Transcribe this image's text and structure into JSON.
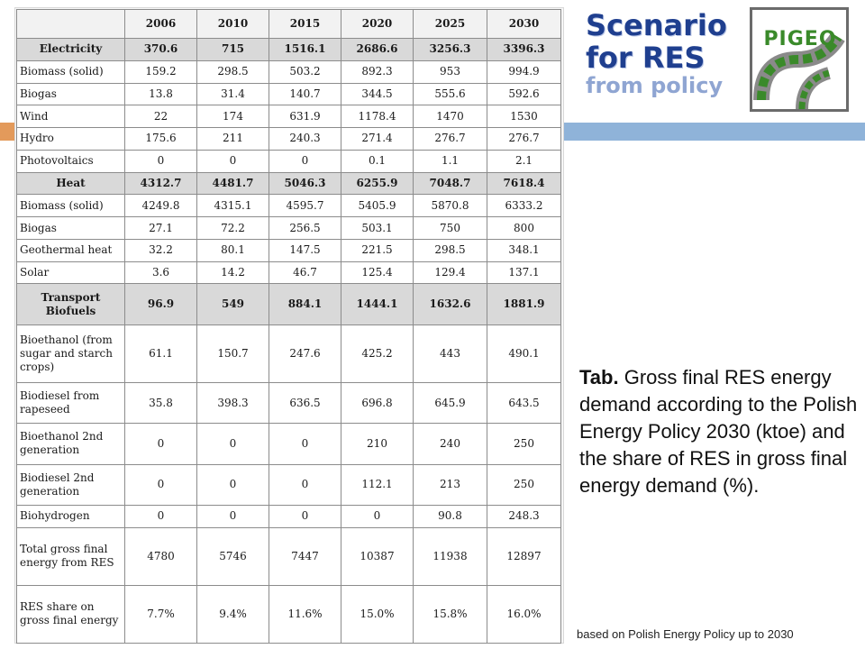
{
  "slide": {
    "title_line1": "Scenario",
    "title_line2": "for RES",
    "subtitle": "from policy",
    "logo_text": "PIGEO",
    "caption_bold": "Tab.",
    "caption_text": " Gross final RES energy demand according to the Polish Energy Policy 2030 (ktoe) and the share of RES in gross final energy demand (%).",
    "footnote": "based on Polish Energy Policy up to 2030",
    "colors": {
      "title": "#1f3f8f",
      "subtitle": "#8fa5d2",
      "accent_left": "#e39a5b",
      "accent_right": "#8fb3d9",
      "logo_green": "#3a8a2a"
    }
  },
  "table": {
    "years": [
      "2006",
      "2010",
      "2015",
      "2020",
      "2025",
      "2030"
    ],
    "rows": [
      {
        "label": "Electricity",
        "section": true,
        "values": [
          "370.6",
          "715",
          "1516.1",
          "2686.6",
          "3256.3",
          "3396.3"
        ]
      },
      {
        "label": "Biomass (solid)",
        "values": [
          "159.2",
          "298.5",
          "503.2",
          "892.3",
          "953",
          "994.9"
        ]
      },
      {
        "label": "Biogas",
        "values": [
          "13.8",
          "31.4",
          "140.7",
          "344.5",
          "555.6",
          "592.6"
        ]
      },
      {
        "label": "Wind",
        "values": [
          "22",
          "174",
          "631.9",
          "1178.4",
          "1470",
          "1530"
        ]
      },
      {
        "label": "Hydro",
        "values": [
          "175.6",
          "211",
          "240.3",
          "271.4",
          "276.7",
          "276.7"
        ]
      },
      {
        "label": "Photovoltaics",
        "values": [
          "0",
          "0",
          "0",
          "0.1",
          "1.1",
          "2.1"
        ]
      },
      {
        "label": "Heat",
        "section": true,
        "values": [
          "4312.7",
          "4481.7",
          "5046.3",
          "6255.9",
          "7048.7",
          "7618.4"
        ]
      },
      {
        "label": "Biomass (solid)",
        "values": [
          "4249.8",
          "4315.1",
          "4595.7",
          "5405.9",
          "5870.8",
          "6333.2"
        ]
      },
      {
        "label": "Biogas",
        "values": [
          "27.1",
          "72.2",
          "256.5",
          "503.1",
          "750",
          "800"
        ]
      },
      {
        "label": "Geothermal heat",
        "values": [
          "32.2",
          "80.1",
          "147.5",
          "221.5",
          "298.5",
          "348.1"
        ]
      },
      {
        "label": "Solar",
        "values": [
          "3.6",
          "14.2",
          "46.7",
          "125.4",
          "129.4",
          "137.1"
        ]
      },
      {
        "label": "Transport Biofuels",
        "section": true,
        "values": [
          "96.9",
          "549",
          "884.1",
          "1444.1",
          "1632.6",
          "1881.9"
        ]
      },
      {
        "label": "Bioethanol (from sugar and starch crops)",
        "values": [
          "61.1",
          "150.7",
          "247.6",
          "425.2",
          "443",
          "490.1"
        ]
      },
      {
        "label": "Biodiesel from rapeseed",
        "values": [
          "35.8",
          "398.3",
          "636.5",
          "696.8",
          "645.9",
          "643.5"
        ]
      },
      {
        "label": "Bioethanol 2nd generation",
        "values": [
          "0",
          "0",
          "0",
          "210",
          "240",
          "250"
        ]
      },
      {
        "label": "Biodiesel 2nd generation",
        "values": [
          "0",
          "0",
          "0",
          "112.1",
          "213",
          "250"
        ]
      },
      {
        "label": "Biohydrogen",
        "values": [
          "0",
          "0",
          "0",
          "0",
          "90.8",
          "248.3"
        ]
      },
      {
        "label": "Total gross final energy from RES",
        "values": [
          "4780",
          "5746",
          "7447",
          "10387",
          "11938",
          "12897"
        ]
      },
      {
        "label": "RES share on gross final energy",
        "values": [
          "7.7%",
          "9.4%",
          "11.6%",
          "15.0%",
          "15.8%",
          "16.0%"
        ]
      }
    ]
  }
}
